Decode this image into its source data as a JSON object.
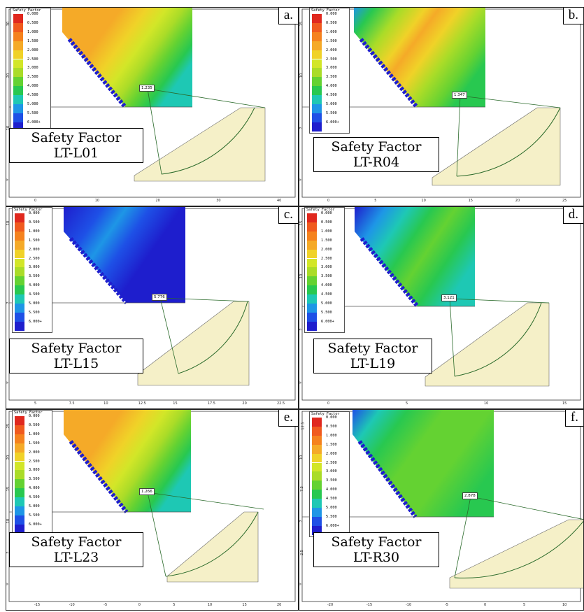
{
  "legend": {
    "title": "Safety Factor",
    "values": [
      "0.000",
      "0.500",
      "1.000",
      "1.500",
      "2.000",
      "2.500",
      "3.000",
      "3.500",
      "4.000",
      "4.500",
      "5.000",
      "5.500",
      "6.000+"
    ],
    "colors": [
      "#e0281e",
      "#f05a1e",
      "#f5821e",
      "#f5aa28",
      "#f0d228",
      "#d2e628",
      "#aadc28",
      "#64d232",
      "#28c850",
      "#1ec8b4",
      "#1e96e6",
      "#1e50e6",
      "#1e1ecd"
    ]
  },
  "caption_title": "Safety Factor",
  "panels": [
    {
      "letter": "a.",
      "name": "LT-L01",
      "sf": "1.235",
      "grid": "orange",
      "xticks": [
        "0",
        "10",
        "20",
        "30",
        "40"
      ],
      "yticks": [
        "30",
        "20",
        "10",
        "0"
      ]
    },
    {
      "letter": "b.",
      "name": "LT-R04",
      "sf": "1.347",
      "grid": "mixed",
      "xticks": [
        "0",
        "5",
        "10",
        "15",
        "20",
        "25"
      ],
      "yticks": [
        "15",
        "10",
        "5",
        "0"
      ]
    },
    {
      "letter": "c.",
      "name": "LT-L15",
      "sf": "5.776",
      "grid": "blue",
      "xticks": [
        "5",
        "7.5",
        "10",
        "12.5",
        "15",
        "17.5",
        "20",
        "22.5"
      ],
      "yticks": [
        "10",
        "5",
        "0"
      ]
    },
    {
      "letter": "d.",
      "name": "LT-L19",
      "sf": "3.121",
      "grid": "green",
      "xticks": [
        "0",
        "5",
        "10",
        "15"
      ],
      "yticks": [
        "15",
        "10",
        "5",
        "0"
      ]
    },
    {
      "letter": "e.",
      "name": "LT-L23",
      "sf": "1.266",
      "grid": "orange",
      "xticks": [
        "-15",
        "-10",
        "-5",
        "0",
        "5",
        "10",
        "15",
        "20"
      ],
      "yticks": [
        "25",
        "20",
        "15",
        "10",
        "5",
        "0"
      ]
    },
    {
      "letter": "f.",
      "name": "LT-R30",
      "sf": "2.878",
      "grid": "greenblue",
      "xticks": [
        "-20",
        "-15",
        "-10",
        "-5",
        "0",
        "5",
        "10"
      ],
      "yticks": [
        "12.5",
        "10",
        "7.5",
        "5",
        "2.5",
        "0"
      ]
    }
  ]
}
